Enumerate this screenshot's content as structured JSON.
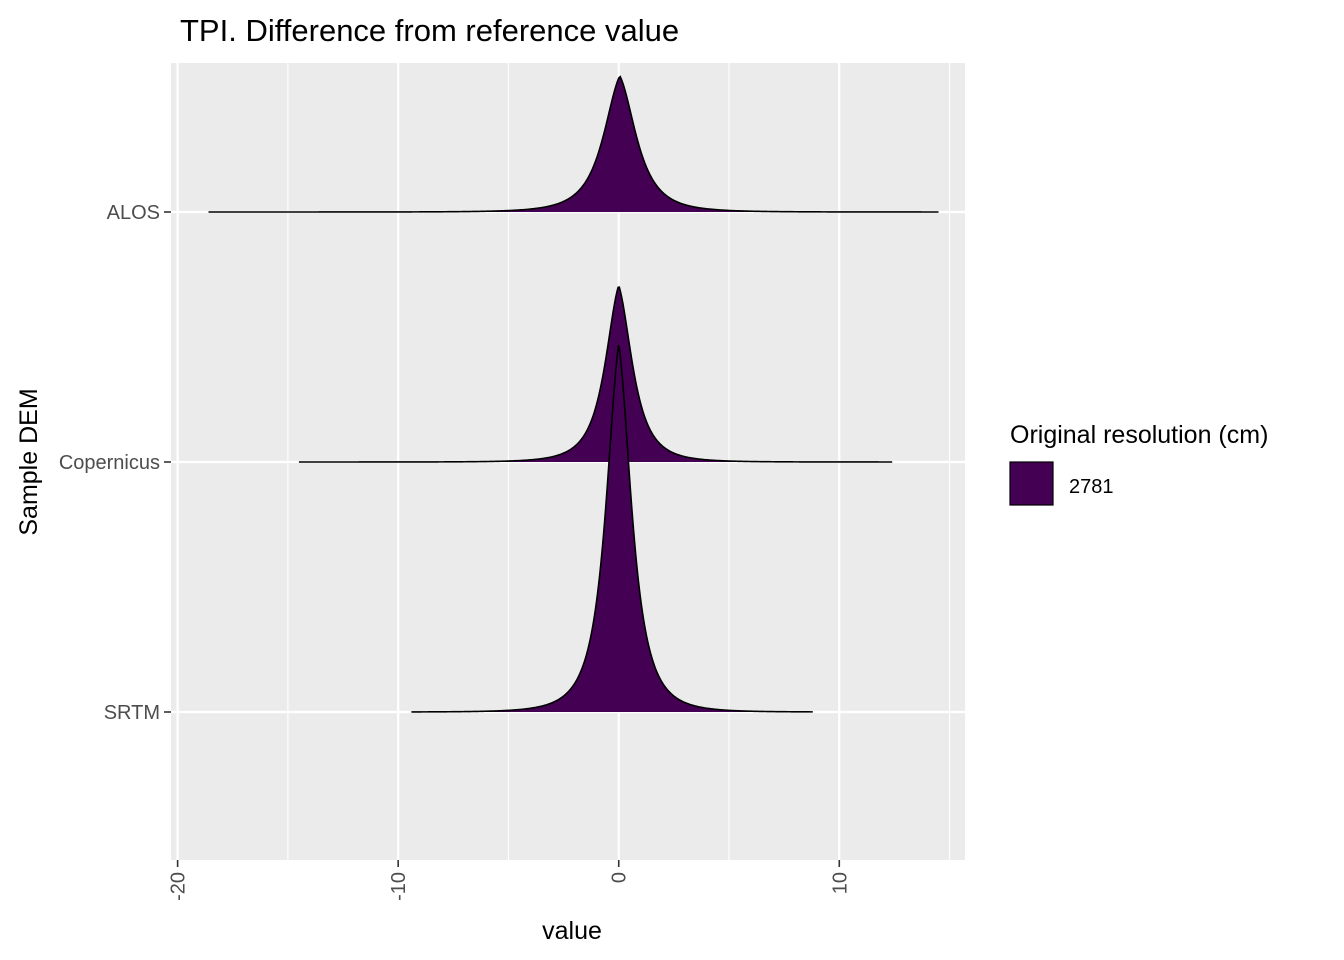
{
  "chart_data": {
    "type": "ridgeline",
    "title": "TPI. Difference from reference value",
    "xlabel": "value",
    "ylabel": "Sample DEM",
    "xlim": [
      -20.3,
      15.7
    ],
    "x_ticks": [
      -20,
      -10,
      0,
      10
    ],
    "x_minor": [
      -15,
      -5,
      5,
      15
    ],
    "categories": [
      "ALOS",
      "Copernicus",
      "SRTM"
    ],
    "fill_color": "#440154",
    "line_color": "#000000",
    "panel_bg": "#ebebeb",
    "grid": true,
    "legend": {
      "title": "Original resolution (cm)",
      "entries": [
        {
          "label": "2781",
          "color": "#440154"
        }
      ],
      "position": "right"
    },
    "series": [
      {
        "category": "ALOS",
        "min": -18.6,
        "max": 14.5,
        "mode": 0.05,
        "peak_height": 0.37,
        "spread": 1.15
      },
      {
        "category": "Copernicus",
        "min": -14.5,
        "max": 12.4,
        "mode": 0.0,
        "peak_height": 0.48,
        "spread": 0.95
      },
      {
        "category": "SRTM",
        "min": -9.4,
        "max": 8.8,
        "mode": 0.0,
        "peak_height": 1.0,
        "spread": 0.9
      }
    ]
  }
}
